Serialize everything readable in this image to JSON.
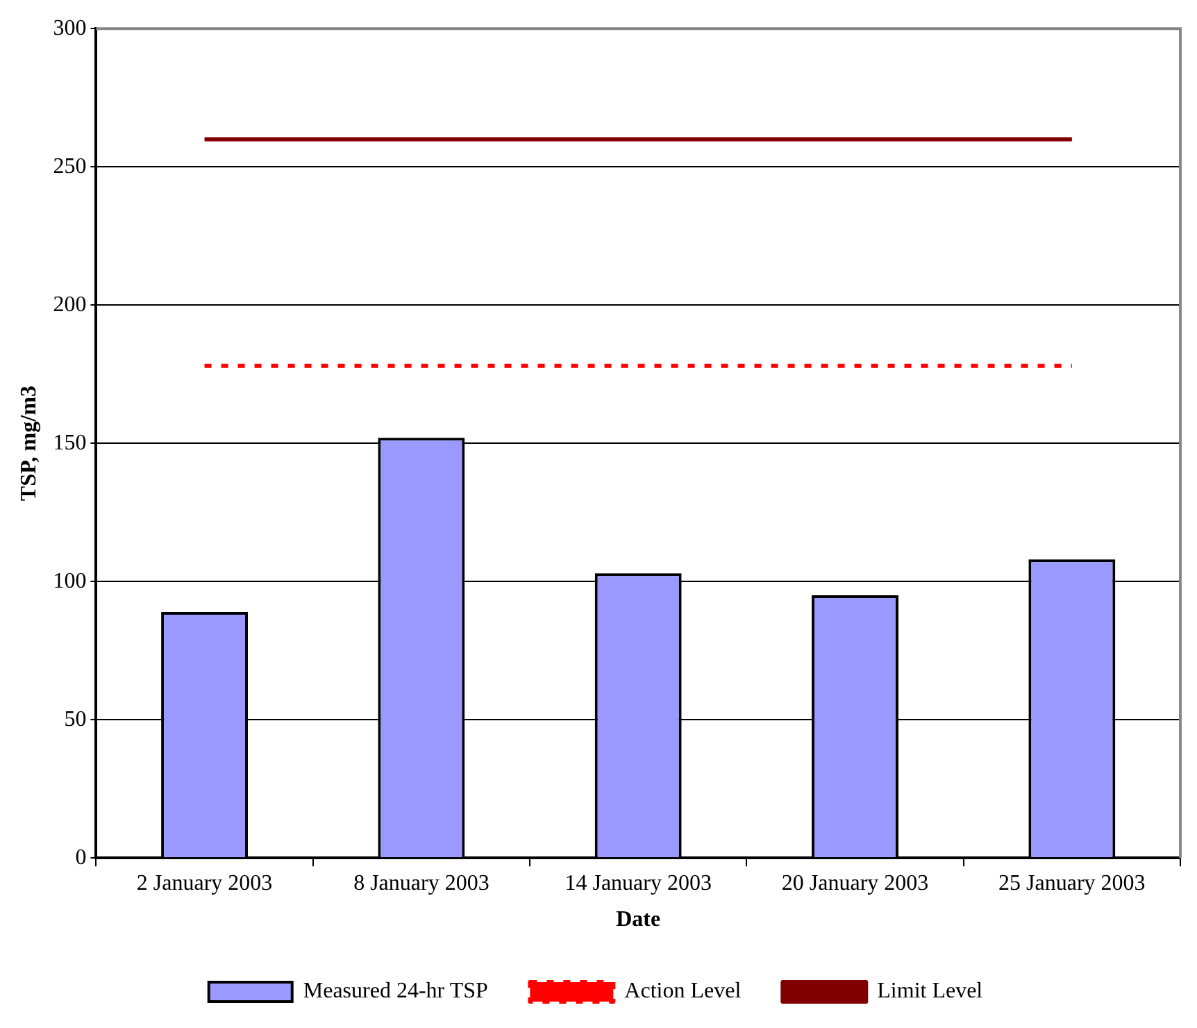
{
  "chart_data": {
    "type": "bar",
    "xlabel": "Date",
    "ylabel": "TSP, mg/m3",
    "categories": [
      "2 January 2003",
      "8 January 2003",
      "14 January 2003",
      "20 January 2003",
      "25 January 2003"
    ],
    "series": [
      {
        "name": "Measured 24-hr TSP",
        "color": "#9999ff",
        "values": [
          89,
          152,
          103,
          95,
          108
        ]
      },
      {
        "name": "Action Level",
        "type": "line",
        "line_style": "dotted",
        "color": "#ff0000",
        "values": [
          178,
          178,
          178,
          178,
          178
        ]
      },
      {
        "name": "Limit Level",
        "type": "line",
        "line_style": "solid",
        "color": "#800000",
        "values": [
          260,
          260,
          260,
          260,
          260
        ]
      }
    ],
    "ylim": [
      0,
      300
    ],
    "yticks": [
      0,
      50,
      100,
      150,
      200,
      250,
      300
    ],
    "grid": "y",
    "legend": "bottom",
    "marker": "none"
  }
}
